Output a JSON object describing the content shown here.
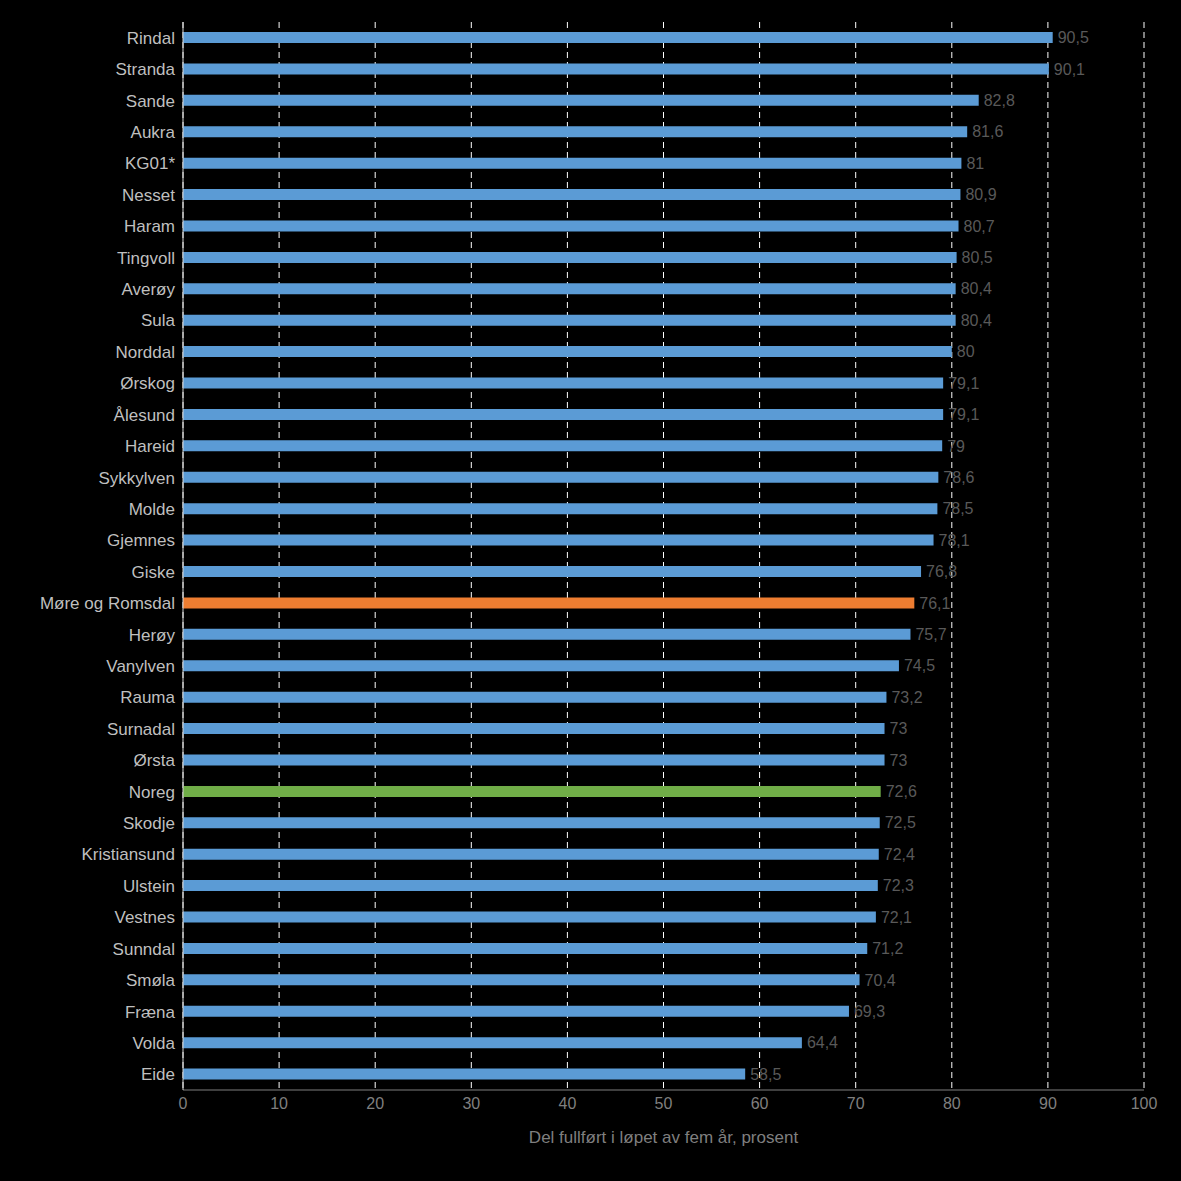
{
  "chart_data": {
    "type": "bar",
    "orientation": "horizontal",
    "x_label": "Del fullført i løpet av fem år, prosent",
    "categories": [
      "Rindal",
      "Stranda",
      "Sande",
      "Aukra",
      "KG01*",
      "Nesset",
      "Haram",
      "Tingvoll",
      "Averøy",
      "Sula",
      "Norddal",
      "Ørskog",
      "Ålesund",
      "Hareid",
      "Sykkylven",
      "Molde",
      "Gjemnes",
      "Giske",
      "Møre og Romsdal",
      "Herøy",
      "Vanylven",
      "Rauma",
      "Surnadal",
      "Ørsta",
      "Noreg",
      "Skodje",
      "Kristiansund",
      "Ulstein",
      "Vestnes",
      "Sunndal",
      "Smøla",
      "Fræna",
      "Volda",
      "Eide"
    ],
    "values": [
      90.5,
      90.1,
      82.8,
      81.6,
      81,
      80.9,
      80.7,
      80.5,
      80.4,
      80.4,
      80,
      79.1,
      79.1,
      79,
      78.6,
      78.5,
      78.1,
      76.8,
      76.1,
      75.7,
      74.5,
      73.2,
      73,
      73,
      72.6,
      72.5,
      72.4,
      72.3,
      72.1,
      71.2,
      70.4,
      69.3,
      64.4,
      58.5
    ],
    "value_labels": [
      "90,5",
      "90,1",
      "82,8",
      "81,6",
      "81",
      "80,9",
      "80,7",
      "80,5",
      "80,4",
      "80,4",
      "80",
      "79,1",
      "79,1",
      "79",
      "78,6",
      "78,5",
      "78,1",
      "76,8",
      "76,1",
      "75,7",
      "74,5",
      "73,2",
      "73",
      "73",
      "72,6",
      "72,5",
      "72,4",
      "72,3",
      "72,1",
      "71,2",
      "70,4",
      "69,3",
      "64,4",
      "58,5"
    ],
    "colors": [
      "#5b9bd5",
      "#5b9bd5",
      "#5b9bd5",
      "#5b9bd5",
      "#5b9bd5",
      "#5b9bd5",
      "#5b9bd5",
      "#5b9bd5",
      "#5b9bd5",
      "#5b9bd5",
      "#5b9bd5",
      "#5b9bd5",
      "#5b9bd5",
      "#5b9bd5",
      "#5b9bd5",
      "#5b9bd5",
      "#5b9bd5",
      "#5b9bd5",
      "#ed7d31",
      "#5b9bd5",
      "#5b9bd5",
      "#5b9bd5",
      "#5b9bd5",
      "#5b9bd5",
      "#70ad47",
      "#5b9bd5",
      "#5b9bd5",
      "#5b9bd5",
      "#5b9bd5",
      "#5b9bd5",
      "#5b9bd5",
      "#5b9bd5",
      "#5b9bd5",
      "#5b9bd5"
    ],
    "xlim": [
      0,
      100
    ],
    "xticks": [
      0,
      10,
      20,
      30,
      40,
      50,
      60,
      70,
      80,
      90,
      100
    ],
    "grid": true,
    "data_labels": true
  }
}
